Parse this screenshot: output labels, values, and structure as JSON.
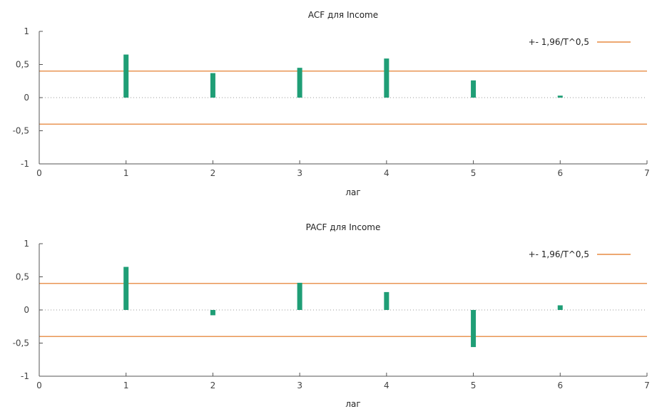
{
  "colors": {
    "bar": "#1f9e76",
    "band": "#e2731c",
    "axis": "#555555",
    "zero": "#999999"
  },
  "chart_data": [
    {
      "type": "bar",
      "title": "ACF для Income",
      "xlabel": "лаг",
      "ylabel": "",
      "x": [
        1,
        2,
        3,
        4,
        5,
        6
      ],
      "series": [
        {
          "values": [
            0.65,
            0.37,
            0.45,
            0.59,
            0.26,
            0.03
          ]
        }
      ],
      "bands": {
        "label": "+- 1,96/T^0,5",
        "value": 0.4
      },
      "xlim": [
        0,
        7
      ],
      "ylim": [
        -1,
        1
      ],
      "xticks": [
        "0",
        "1",
        "2",
        "3",
        "4",
        "5",
        "6",
        "7"
      ],
      "yticks": [
        "1",
        "0,5",
        "0",
        "-0,5",
        "-1"
      ],
      "ytick_values": [
        1,
        0.5,
        0,
        -0.5,
        -1
      ],
      "grid": false,
      "legend_position": "top-right"
    },
    {
      "type": "bar",
      "title": "PACF для Income",
      "xlabel": "лаг",
      "ylabel": "",
      "x": [
        1,
        2,
        3,
        4,
        5,
        6
      ],
      "series": [
        {
          "values": [
            0.65,
            -0.08,
            0.41,
            0.27,
            -0.56,
            0.07
          ]
        }
      ],
      "bands": {
        "label": "+- 1,96/T^0,5",
        "value": 0.4
      },
      "xlim": [
        0,
        7
      ],
      "ylim": [
        -1,
        1
      ],
      "xticks": [
        "0",
        "1",
        "2",
        "3",
        "4",
        "5",
        "6",
        "7"
      ],
      "yticks": [
        "1",
        "0,5",
        "0",
        "-0,5",
        "-1"
      ],
      "ytick_values": [
        1,
        0.5,
        0,
        -0.5,
        -1
      ],
      "grid": false,
      "legend_position": "top-right"
    }
  ]
}
